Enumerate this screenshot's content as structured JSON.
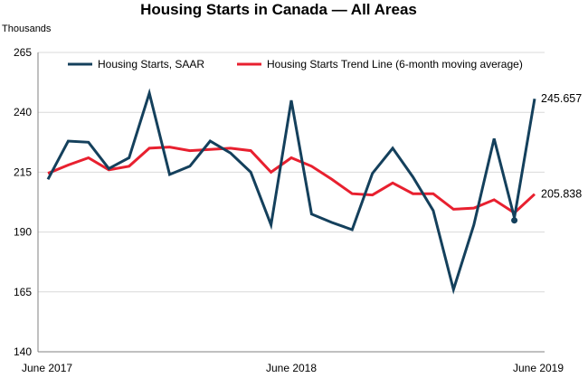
{
  "chart_data": {
    "type": "line",
    "title": "Housing Starts in Canada — All Areas",
    "ylabel": "Thousands",
    "xlabel": "",
    "ylim": [
      140,
      265
    ],
    "yticks": [
      140,
      165,
      190,
      215,
      240,
      265
    ],
    "grid": true,
    "legend_position": "top",
    "x": [
      "2017-06",
      "2017-07",
      "2017-08",
      "2017-09",
      "2017-10",
      "2017-11",
      "2017-12",
      "2018-01",
      "2018-02",
      "2018-03",
      "2018-04",
      "2018-05",
      "2018-06",
      "2018-07",
      "2018-08",
      "2018-09",
      "2018-10",
      "2018-11",
      "2018-12",
      "2019-01",
      "2019-02",
      "2019-03",
      "2019-04",
      "2019-05",
      "2019-06"
    ],
    "x_tick_labels": [
      {
        "index": 0,
        "label": "June 2017"
      },
      {
        "index": 12,
        "label": "June 2018"
      },
      {
        "index": 24,
        "label": "June 2019"
      }
    ],
    "series": [
      {
        "name": "Housing Starts, SAAR",
        "color": "#14405c",
        "values": [
          212,
          228,
          227.5,
          216.5,
          221,
          248,
          214,
          217.5,
          228,
          223,
          215,
          193,
          245,
          197.5,
          194,
          191,
          214.5,
          225,
          213,
          199,
          166,
          193,
          229,
          196,
          245.657
        ],
        "end_label": "245.657"
      },
      {
        "name": "Housing Starts Trend Line (6-month moving average)",
        "color": "#e8202f",
        "values": [
          214.5,
          218,
          221,
          216,
          217.5,
          225,
          225.5,
          224,
          224.5,
          225,
          224,
          215,
          221,
          217.5,
          212,
          206,
          205.5,
          210.5,
          206,
          206,
          199.5,
          200,
          203.5,
          198,
          205.838
        ],
        "end_label": "205.838"
      }
    ],
    "annotations": [
      {
        "series": "Housing Starts, SAAR",
        "index": 23,
        "marker": "dot"
      }
    ]
  }
}
